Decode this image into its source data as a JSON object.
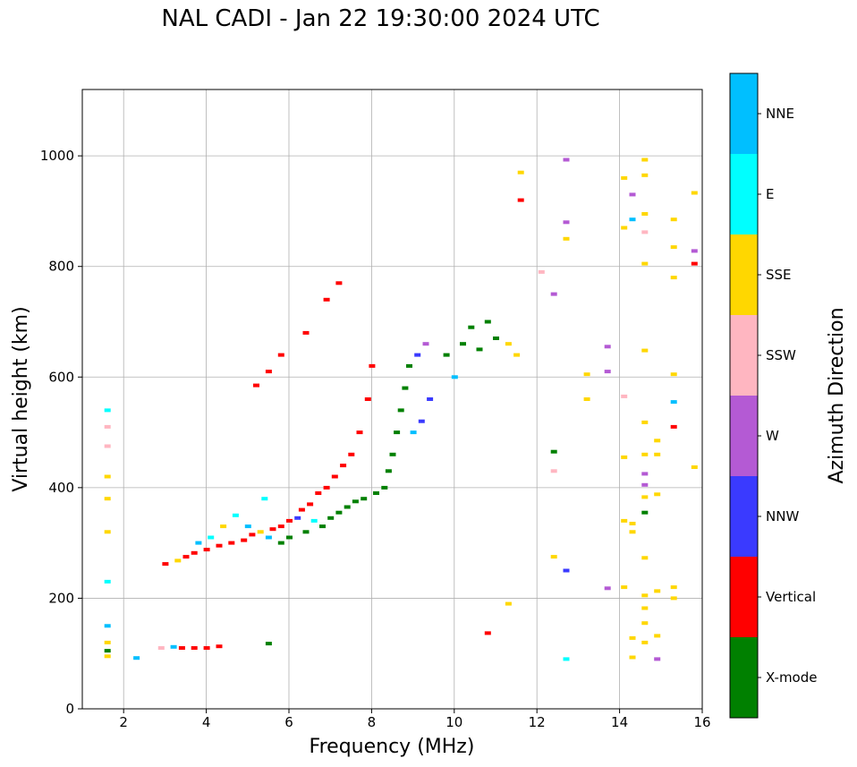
{
  "page": {
    "title": "NAL CADI - Jan 22 19:30:00 2024 UTC"
  },
  "chart_data": {
    "type": "scatter",
    "title": "NAL CADI - Jan 22 19:30:00 2024 UTC",
    "xlabel": "Frequency (MHz)",
    "ylabel": "Virtual height (km)",
    "xlim": [
      1.0,
      16.0
    ],
    "ylim": [
      0,
      1120
    ],
    "xticks": [
      2,
      4,
      6,
      8,
      10,
      12,
      14,
      16
    ],
    "yticks": [
      0,
      200,
      400,
      600,
      800,
      1000
    ],
    "grid": true,
    "colorbar": {
      "label": "Azimuth Direction",
      "categories": [
        "X-mode",
        "Vertical",
        "NNW",
        "W",
        "SSW",
        "SSE",
        "E",
        "NNE"
      ],
      "colors": {
        "X-mode": "#008000",
        "Vertical": "#ff0000",
        "NNW": "#3a3aff",
        "W": "#b45ad4",
        "SSW": "#ffb6c1",
        "SSE": "#ffd700",
        "E": "#00ffff",
        "NNE": "#00bfff"
      }
    },
    "points": [
      {
        "f": 1.6,
        "h": 95,
        "d": "SSE"
      },
      {
        "f": 1.6,
        "h": 105,
        "d": "X-mode"
      },
      {
        "f": 1.6,
        "h": 120,
        "d": "SSE"
      },
      {
        "f": 1.6,
        "h": 150,
        "d": "NNE"
      },
      {
        "f": 1.6,
        "h": 230,
        "d": "E"
      },
      {
        "f": 1.6,
        "h": 320,
        "d": "SSE"
      },
      {
        "f": 1.6,
        "h": 380,
        "d": "SSE"
      },
      {
        "f": 1.6,
        "h": 420,
        "d": "SSE"
      },
      {
        "f": 1.6,
        "h": 475,
        "d": "SSW"
      },
      {
        "f": 1.6,
        "h": 510,
        "d": "SSW"
      },
      {
        "f": 1.6,
        "h": 540,
        "d": "E"
      },
      {
        "f": 2.3,
        "h": 92,
        "d": "NNE"
      },
      {
        "f": 2.9,
        "h": 110,
        "d": "SSW"
      },
      {
        "f": 3.2,
        "h": 112,
        "d": "NNE"
      },
      {
        "f": 3.4,
        "h": 110,
        "d": "Vertical"
      },
      {
        "f": 3.7,
        "h": 110,
        "d": "Vertical"
      },
      {
        "f": 4.0,
        "h": 110,
        "d": "Vertical"
      },
      {
        "f": 4.3,
        "h": 113,
        "d": "Vertical"
      },
      {
        "f": 5.5,
        "h": 118,
        "d": "X-mode"
      },
      {
        "f": 3.0,
        "h": 262,
        "d": "Vertical"
      },
      {
        "f": 3.3,
        "h": 268,
        "d": "SSE"
      },
      {
        "f": 3.5,
        "h": 275,
        "d": "Vertical"
      },
      {
        "f": 3.7,
        "h": 282,
        "d": "Vertical"
      },
      {
        "f": 3.8,
        "h": 300,
        "d": "NNE"
      },
      {
        "f": 4.0,
        "h": 288,
        "d": "Vertical"
      },
      {
        "f": 4.1,
        "h": 310,
        "d": "E"
      },
      {
        "f": 4.3,
        "h": 295,
        "d": "Vertical"
      },
      {
        "f": 4.4,
        "h": 330,
        "d": "SSE"
      },
      {
        "f": 4.6,
        "h": 300,
        "d": "Vertical"
      },
      {
        "f": 4.7,
        "h": 350,
        "d": "E"
      },
      {
        "f": 4.9,
        "h": 305,
        "d": "Vertical"
      },
      {
        "f": 5.0,
        "h": 330,
        "d": "NNE"
      },
      {
        "f": 5.1,
        "h": 315,
        "d": "Vertical"
      },
      {
        "f": 5.3,
        "h": 320,
        "d": "SSE"
      },
      {
        "f": 5.4,
        "h": 380,
        "d": "E"
      },
      {
        "f": 5.5,
        "h": 310,
        "d": "NNE"
      },
      {
        "f": 5.6,
        "h": 325,
        "d": "Vertical"
      },
      {
        "f": 5.8,
        "h": 330,
        "d": "Vertical"
      },
      {
        "f": 5.8,
        "h": 300,
        "d": "X-mode"
      },
      {
        "f": 6.0,
        "h": 340,
        "d": "Vertical"
      },
      {
        "f": 6.0,
        "h": 310,
        "d": "X-mode"
      },
      {
        "f": 6.2,
        "h": 345,
        "d": "NNW"
      },
      {
        "f": 6.3,
        "h": 360,
        "d": "Vertical"
      },
      {
        "f": 6.4,
        "h": 320,
        "d": "X-mode"
      },
      {
        "f": 6.5,
        "h": 370,
        "d": "Vertical"
      },
      {
        "f": 6.6,
        "h": 340,
        "d": "E"
      },
      {
        "f": 6.7,
        "h": 390,
        "d": "Vertical"
      },
      {
        "f": 6.8,
        "h": 330,
        "d": "X-mode"
      },
      {
        "f": 6.9,
        "h": 400,
        "d": "Vertical"
      },
      {
        "f": 7.0,
        "h": 345,
        "d": "X-mode"
      },
      {
        "f": 7.1,
        "h": 420,
        "d": "Vertical"
      },
      {
        "f": 7.2,
        "h": 355,
        "d": "X-mode"
      },
      {
        "f": 7.3,
        "h": 440,
        "d": "Vertical"
      },
      {
        "f": 7.4,
        "h": 365,
        "d": "X-mode"
      },
      {
        "f": 7.5,
        "h": 460,
        "d": "Vertical"
      },
      {
        "f": 7.6,
        "h": 375,
        "d": "X-mode"
      },
      {
        "f": 7.7,
        "h": 500,
        "d": "Vertical"
      },
      {
        "f": 7.8,
        "h": 380,
        "d": "X-mode"
      },
      {
        "f": 7.9,
        "h": 560,
        "d": "Vertical"
      },
      {
        "f": 8.0,
        "h": 620,
        "d": "Vertical"
      },
      {
        "f": 8.1,
        "h": 390,
        "d": "X-mode"
      },
      {
        "f": 8.3,
        "h": 400,
        "d": "X-mode"
      },
      {
        "f": 8.4,
        "h": 430,
        "d": "X-mode"
      },
      {
        "f": 8.5,
        "h": 460,
        "d": "X-mode"
      },
      {
        "f": 8.6,
        "h": 500,
        "d": "X-mode"
      },
      {
        "f": 8.7,
        "h": 540,
        "d": "X-mode"
      },
      {
        "f": 8.8,
        "h": 580,
        "d": "X-mode"
      },
      {
        "f": 8.9,
        "h": 620,
        "d": "X-mode"
      },
      {
        "f": 9.0,
        "h": 500,
        "d": "NNE"
      },
      {
        "f": 9.1,
        "h": 640,
        "d": "NNW"
      },
      {
        "f": 9.2,
        "h": 520,
        "d": "NNW"
      },
      {
        "f": 9.3,
        "h": 660,
        "d": "W"
      },
      {
        "f": 9.4,
        "h": 560,
        "d": "NNW"
      },
      {
        "f": 9.8,
        "h": 640,
        "d": "X-mode"
      },
      {
        "f": 10.0,
        "h": 600,
        "d": "NNE"
      },
      {
        "f": 10.2,
        "h": 660,
        "d": "X-mode"
      },
      {
        "f": 10.4,
        "h": 690,
        "d": "X-mode"
      },
      {
        "f": 10.6,
        "h": 650,
        "d": "X-mode"
      },
      {
        "f": 10.8,
        "h": 700,
        "d": "X-mode"
      },
      {
        "f": 11.0,
        "h": 670,
        "d": "X-mode"
      },
      {
        "f": 11.3,
        "h": 660,
        "d": "SSE"
      },
      {
        "f": 11.5,
        "h": 640,
        "d": "SSE"
      },
      {
        "f": 5.2,
        "h": 585,
        "d": "Vertical"
      },
      {
        "f": 5.5,
        "h": 610,
        "d": "Vertical"
      },
      {
        "f": 5.8,
        "h": 640,
        "d": "Vertical"
      },
      {
        "f": 6.4,
        "h": 680,
        "d": "Vertical"
      },
      {
        "f": 6.9,
        "h": 740,
        "d": "Vertical"
      },
      {
        "f": 7.2,
        "h": 770,
        "d": "Vertical"
      },
      {
        "f": 10.8,
        "h": 137,
        "d": "Vertical"
      },
      {
        "f": 11.3,
        "h": 190,
        "d": "SSE"
      },
      {
        "f": 11.6,
        "h": 970,
        "d": "SSE"
      },
      {
        "f": 11.6,
        "h": 920,
        "d": "Vertical"
      },
      {
        "f": 12.1,
        "h": 790,
        "d": "SSW"
      },
      {
        "f": 12.4,
        "h": 750,
        "d": "W"
      },
      {
        "f": 12.4,
        "h": 465,
        "d": "X-mode"
      },
      {
        "f": 12.4,
        "h": 430,
        "d": "SSW"
      },
      {
        "f": 12.4,
        "h": 275,
        "d": "SSE"
      },
      {
        "f": 12.7,
        "h": 993,
        "d": "W"
      },
      {
        "f": 12.7,
        "h": 880,
        "d": "W"
      },
      {
        "f": 12.7,
        "h": 850,
        "d": "SSE"
      },
      {
        "f": 12.7,
        "h": 250,
        "d": "NNW"
      },
      {
        "f": 12.7,
        "h": 90,
        "d": "E"
      },
      {
        "f": 13.2,
        "h": 605,
        "d": "SSE"
      },
      {
        "f": 13.2,
        "h": 560,
        "d": "SSE"
      },
      {
        "f": 13.7,
        "h": 655,
        "d": "W"
      },
      {
        "f": 13.7,
        "h": 610,
        "d": "W"
      },
      {
        "f": 13.7,
        "h": 218,
        "d": "W"
      },
      {
        "f": 14.1,
        "h": 960,
        "d": "SSE"
      },
      {
        "f": 14.1,
        "h": 870,
        "d": "SSE"
      },
      {
        "f": 14.1,
        "h": 565,
        "d": "SSW"
      },
      {
        "f": 14.1,
        "h": 455,
        "d": "SSE"
      },
      {
        "f": 14.1,
        "h": 340,
        "d": "SSE"
      },
      {
        "f": 14.1,
        "h": 220,
        "d": "SSE"
      },
      {
        "f": 14.3,
        "h": 930,
        "d": "W"
      },
      {
        "f": 14.3,
        "h": 885,
        "d": "NNE"
      },
      {
        "f": 14.3,
        "h": 335,
        "d": "SSE"
      },
      {
        "f": 14.3,
        "h": 320,
        "d": "SSE"
      },
      {
        "f": 14.3,
        "h": 128,
        "d": "SSE"
      },
      {
        "f": 14.3,
        "h": 93,
        "d": "SSE"
      },
      {
        "f": 14.6,
        "h": 993,
        "d": "SSE"
      },
      {
        "f": 14.6,
        "h": 965,
        "d": "SSE"
      },
      {
        "f": 14.6,
        "h": 895,
        "d": "SSE"
      },
      {
        "f": 14.6,
        "h": 862,
        "d": "SSW"
      },
      {
        "f": 14.6,
        "h": 805,
        "d": "SSE"
      },
      {
        "f": 14.6,
        "h": 648,
        "d": "SSE"
      },
      {
        "f": 14.6,
        "h": 518,
        "d": "SSE"
      },
      {
        "f": 14.6,
        "h": 460,
        "d": "SSE"
      },
      {
        "f": 14.6,
        "h": 425,
        "d": "W"
      },
      {
        "f": 14.6,
        "h": 405,
        "d": "W"
      },
      {
        "f": 14.6,
        "h": 383,
        "d": "SSE"
      },
      {
        "f": 14.6,
        "h": 355,
        "d": "X-mode"
      },
      {
        "f": 14.6,
        "h": 273,
        "d": "SSE"
      },
      {
        "f": 14.6,
        "h": 205,
        "d": "SSE"
      },
      {
        "f": 14.6,
        "h": 182,
        "d": "SSE"
      },
      {
        "f": 14.6,
        "h": 155,
        "d": "SSE"
      },
      {
        "f": 14.6,
        "h": 120,
        "d": "SSE"
      },
      {
        "f": 14.9,
        "h": 485,
        "d": "SSE"
      },
      {
        "f": 14.9,
        "h": 460,
        "d": "SSE"
      },
      {
        "f": 14.9,
        "h": 388,
        "d": "SSE"
      },
      {
        "f": 14.9,
        "h": 213,
        "d": "SSE"
      },
      {
        "f": 14.9,
        "h": 132,
        "d": "SSE"
      },
      {
        "f": 14.9,
        "h": 90,
        "d": "W"
      },
      {
        "f": 15.3,
        "h": 885,
        "d": "SSE"
      },
      {
        "f": 15.3,
        "h": 835,
        "d": "SSE"
      },
      {
        "f": 15.3,
        "h": 780,
        "d": "SSE"
      },
      {
        "f": 15.3,
        "h": 605,
        "d": "SSE"
      },
      {
        "f": 15.3,
        "h": 555,
        "d": "NNE"
      },
      {
        "f": 15.3,
        "h": 510,
        "d": "Vertical"
      },
      {
        "f": 15.3,
        "h": 220,
        "d": "SSE"
      },
      {
        "f": 15.3,
        "h": 200,
        "d": "SSE"
      },
      {
        "f": 15.8,
        "h": 933,
        "d": "SSE"
      },
      {
        "f": 15.8,
        "h": 828,
        "d": "W"
      },
      {
        "f": 15.8,
        "h": 805,
        "d": "Vertical"
      },
      {
        "f": 15.8,
        "h": 437,
        "d": "SSE"
      }
    ]
  }
}
